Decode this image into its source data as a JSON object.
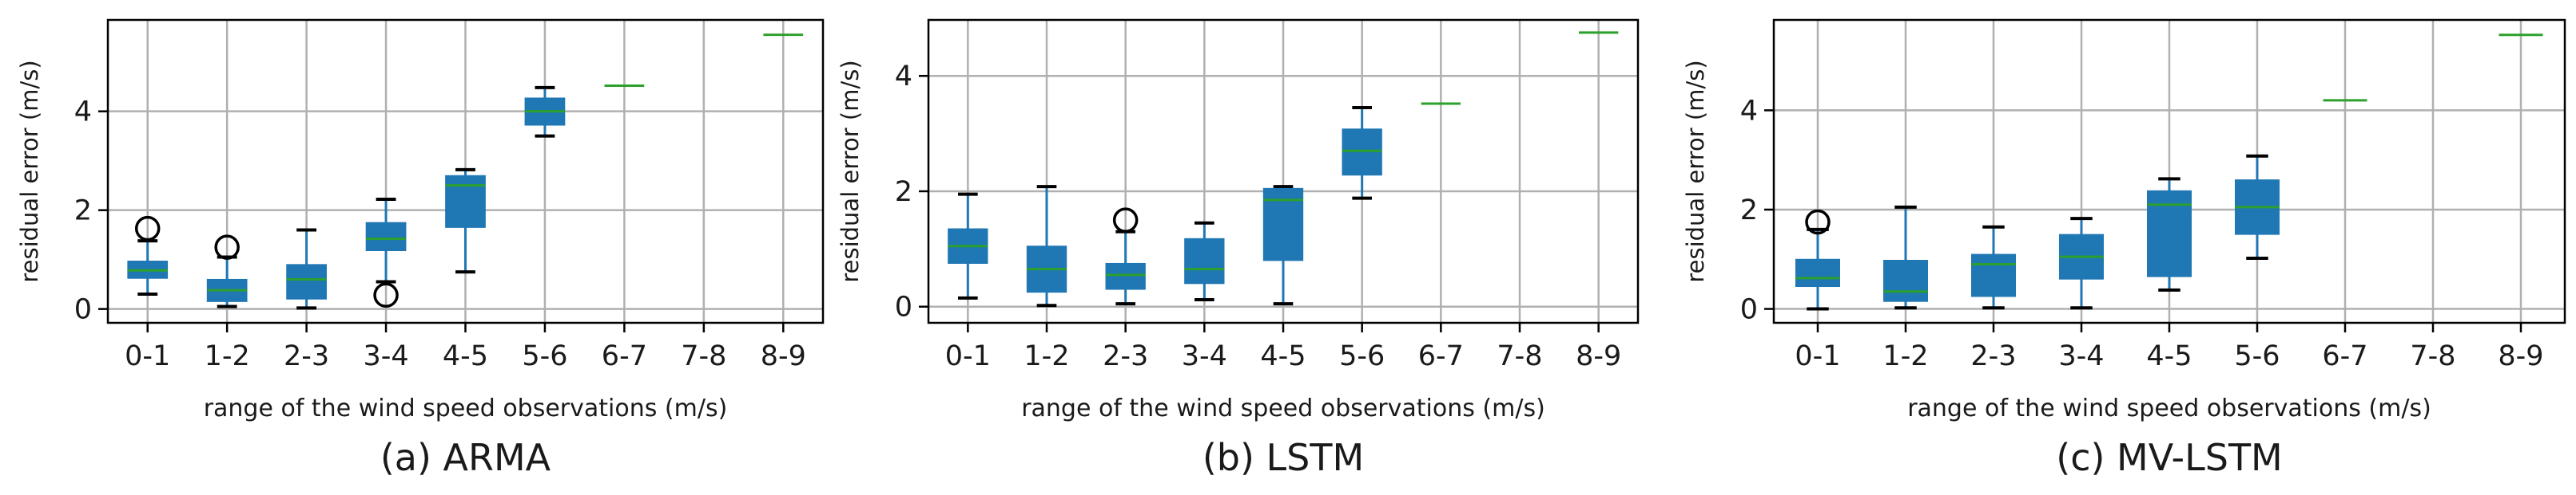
{
  "chart_data": [
    {
      "type": "box",
      "caption": "(a) ARMA",
      "xlabel": "range of the wind speed observations (m/s)",
      "ylabel": "residual error (m/s)",
      "categories": [
        "0-1",
        "1-2",
        "2-3",
        "3-4",
        "4-5",
        "5-6",
        "6-7",
        "7-8",
        "8-9"
      ],
      "yticks": [
        0,
        2,
        4
      ],
      "ylim": [
        -0.28,
        5.85
      ],
      "grid": true,
      "box_color": "#1f77b4",
      "median_color": "#2ca02c",
      "boxes": [
        {
          "category": "0-1",
          "whislo": 0.3,
          "q1": 0.62,
          "med": 0.78,
          "q3": 0.97,
          "whishi": 1.38,
          "fliers": [
            1.63
          ]
        },
        {
          "category": "1-2",
          "whislo": 0.05,
          "q1": 0.15,
          "med": 0.38,
          "q3": 0.6,
          "whishi": 1.05,
          "fliers": [
            1.25
          ]
        },
        {
          "category": "2-3",
          "whislo": 0.02,
          "q1": 0.2,
          "med": 0.6,
          "q3": 0.9,
          "whishi": 1.6,
          "fliers": []
        },
        {
          "category": "3-4",
          "whislo": 0.55,
          "q1": 1.18,
          "med": 1.42,
          "q3": 1.75,
          "whishi": 2.22,
          "fliers": [
            0.28
          ]
        },
        {
          "category": "4-5",
          "whislo": 0.75,
          "q1": 1.65,
          "med": 2.5,
          "q3": 2.7,
          "whishi": 2.82,
          "fliers": []
        },
        {
          "category": "5-6",
          "whislo": 3.5,
          "q1": 3.72,
          "med": 4.0,
          "q3": 4.27,
          "whishi": 4.48,
          "fliers": []
        },
        {
          "category": "6-7",
          "med": 4.52
        },
        {
          "category": "8-9",
          "med": 5.55
        }
      ]
    },
    {
      "type": "box",
      "caption": "(b) LSTM",
      "xlabel": "range of the wind speed observations (m/s)",
      "ylabel": "residual error (m/s)",
      "categories": [
        "0-1",
        "1-2",
        "2-3",
        "3-4",
        "4-5",
        "5-6",
        "6-7",
        "7-8",
        "8-9"
      ],
      "yticks": [
        0,
        2,
        4
      ],
      "ylim": [
        -0.28,
        4.97
      ],
      "grid": true,
      "box_color": "#1f77b4",
      "median_color": "#2ca02c",
      "boxes": [
        {
          "category": "0-1",
          "whislo": 0.15,
          "q1": 0.75,
          "med": 1.05,
          "q3": 1.35,
          "whishi": 1.95,
          "fliers": []
        },
        {
          "category": "1-2",
          "whislo": 0.02,
          "q1": 0.25,
          "med": 0.65,
          "q3": 1.05,
          "whishi": 2.08,
          "fliers": []
        },
        {
          "category": "2-3",
          "whislo": 0.05,
          "q1": 0.3,
          "med": 0.55,
          "q3": 0.75,
          "whishi": 1.3,
          "fliers": [
            1.5
          ]
        },
        {
          "category": "3-4",
          "whislo": 0.12,
          "q1": 0.4,
          "med": 0.65,
          "q3": 1.18,
          "whishi": 1.45,
          "fliers": []
        },
        {
          "category": "4-5",
          "whislo": 0.05,
          "q1": 0.8,
          "med": 1.85,
          "q3": 2.05,
          "whishi": 2.08,
          "fliers": []
        },
        {
          "category": "5-6",
          "whislo": 1.88,
          "q1": 2.28,
          "med": 2.7,
          "q3": 3.08,
          "whishi": 3.45,
          "fliers": []
        },
        {
          "category": "6-7",
          "med": 3.52
        },
        {
          "category": "8-9",
          "med": 4.75
        }
      ]
    },
    {
      "type": "box",
      "caption": "(c) MV-LSTM",
      "xlabel": "range of the wind speed observations (m/s)",
      "ylabel": "residual error (m/s)",
      "categories": [
        "0-1",
        "1-2",
        "2-3",
        "3-4",
        "4-5",
        "5-6",
        "6-7",
        "7-8",
        "8-9"
      ],
      "yticks": [
        0,
        2,
        4
      ],
      "ylim": [
        -0.28,
        5.82
      ],
      "grid": true,
      "box_color": "#1f77b4",
      "median_color": "#2ca02c",
      "boxes": [
        {
          "category": "0-1",
          "whislo": 0.0,
          "q1": 0.45,
          "med": 0.62,
          "q3": 1.0,
          "whishi": 1.6,
          "fliers": [
            1.75
          ]
        },
        {
          "category": "1-2",
          "whislo": 0.02,
          "q1": 0.15,
          "med": 0.35,
          "q3": 0.98,
          "whishi": 2.05,
          "fliers": []
        },
        {
          "category": "2-3",
          "whislo": 0.02,
          "q1": 0.25,
          "med": 0.9,
          "q3": 1.1,
          "whishi": 1.65,
          "fliers": []
        },
        {
          "category": "3-4",
          "whislo": 0.02,
          "q1": 0.6,
          "med": 1.05,
          "q3": 1.5,
          "whishi": 1.82,
          "fliers": []
        },
        {
          "category": "4-5",
          "whislo": 0.38,
          "q1": 0.65,
          "med": 2.1,
          "q3": 2.38,
          "whishi": 2.62,
          "fliers": []
        },
        {
          "category": "5-6",
          "whislo": 1.02,
          "q1": 1.5,
          "med": 2.05,
          "q3": 2.6,
          "whishi": 3.08,
          "fliers": []
        },
        {
          "category": "6-7",
          "med": 4.2
        },
        {
          "category": "8-9",
          "med": 5.52
        }
      ]
    }
  ]
}
